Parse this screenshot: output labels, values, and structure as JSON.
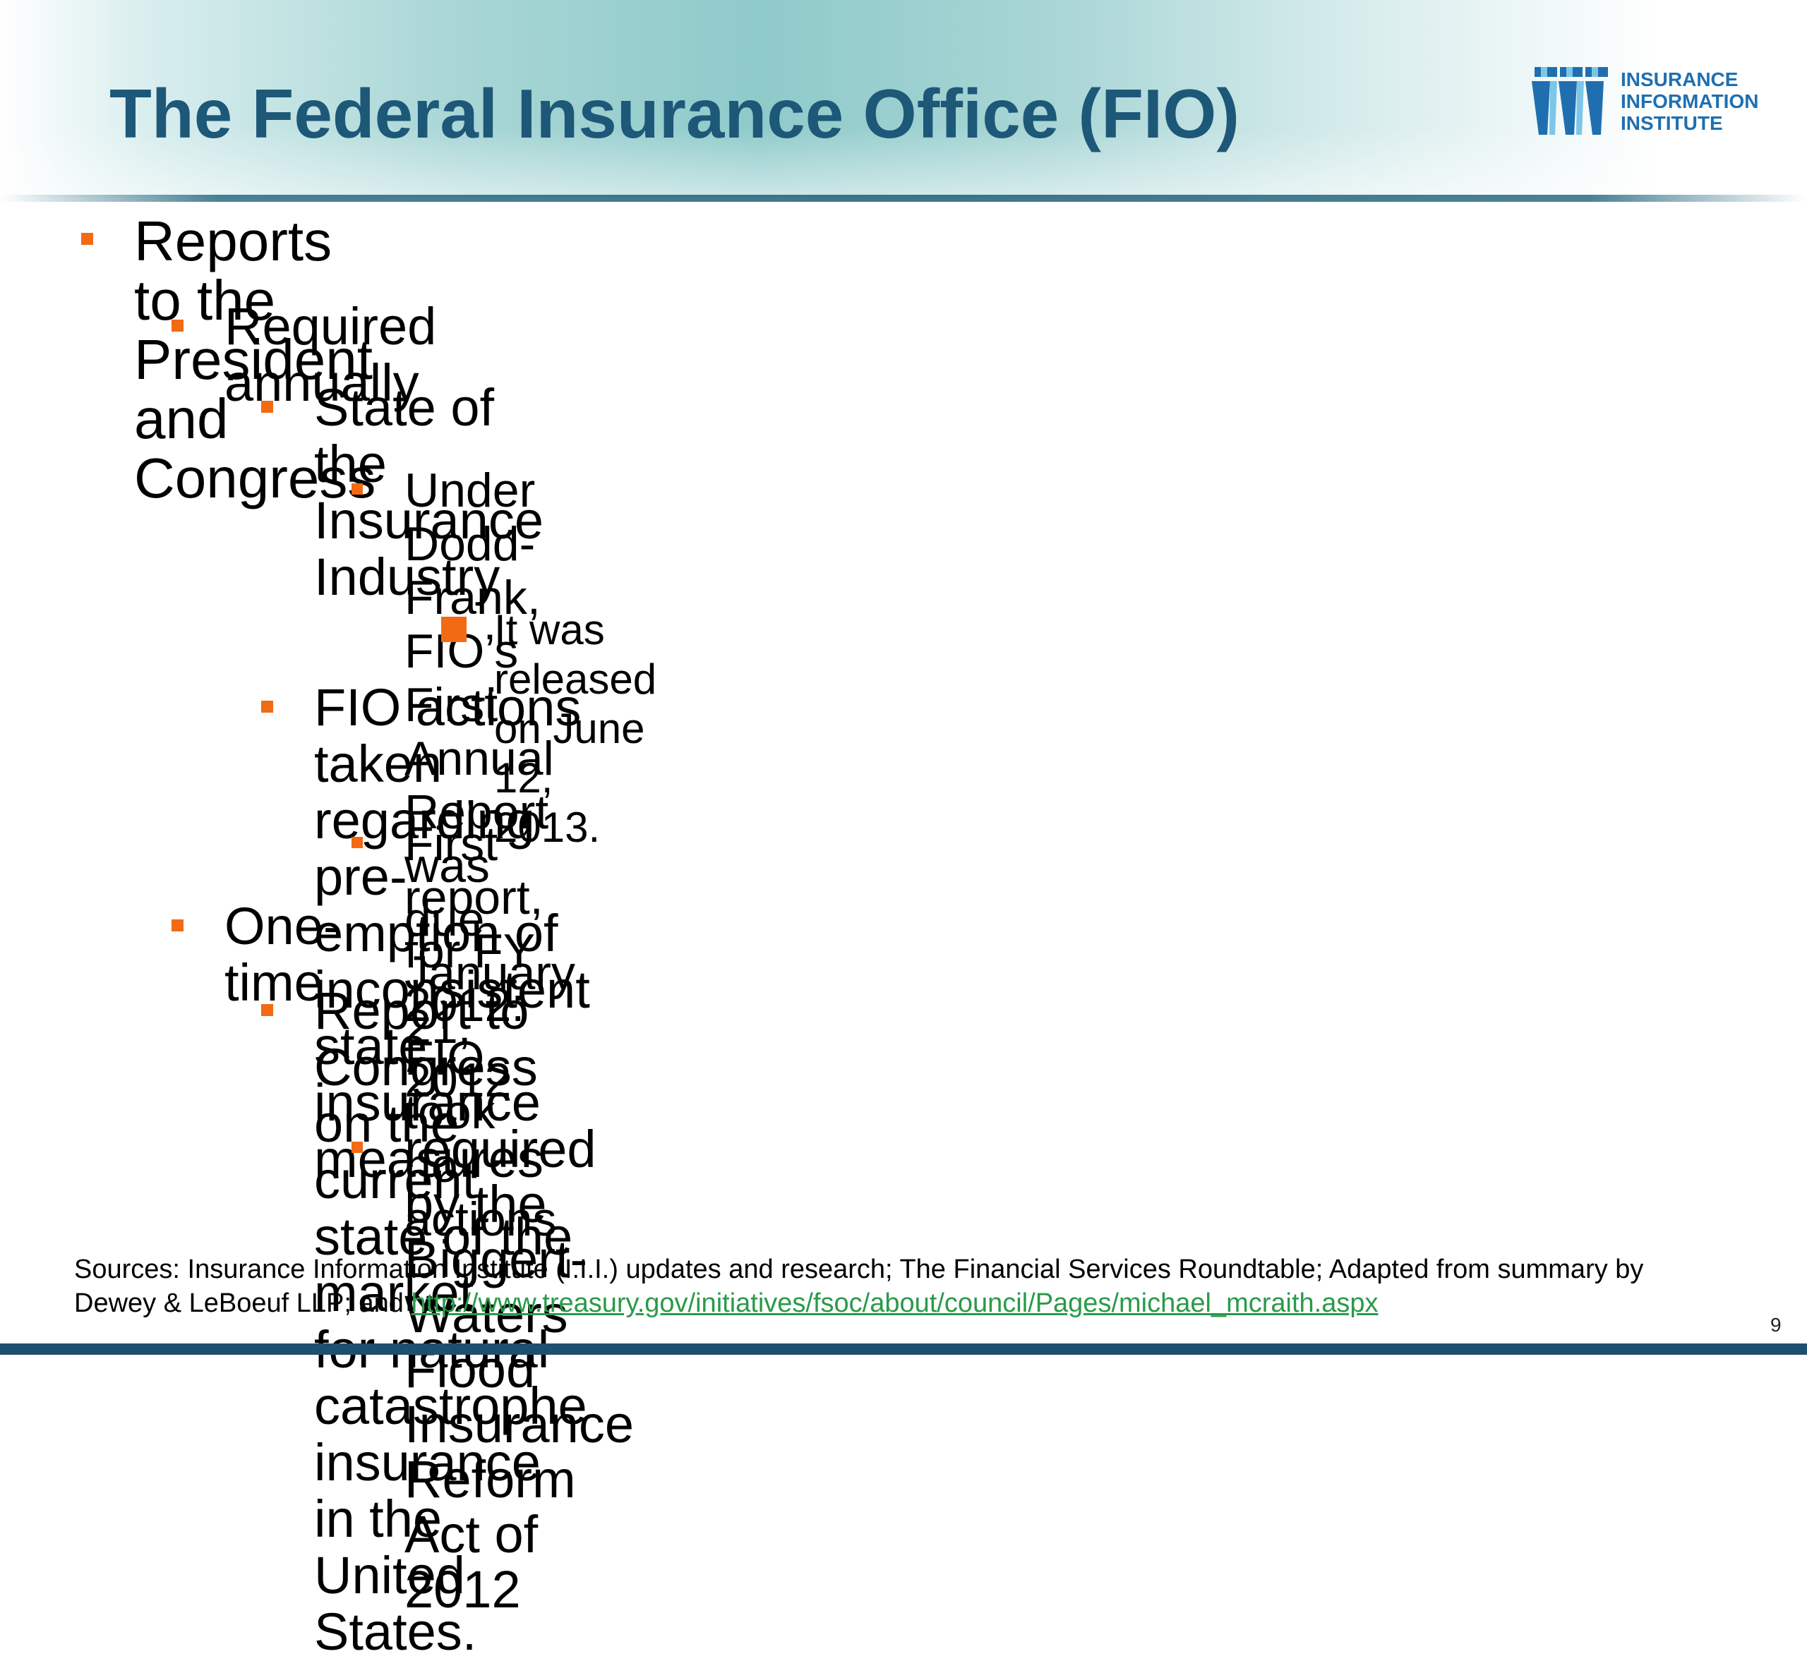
{
  "slide": {
    "title": "The Federal Insurance Office (FIO)",
    "logo": {
      "icon": "iii-logo-icon",
      "lines": [
        "INSURANCE",
        "INFORMATION",
        "INSTITUTE"
      ],
      "color": "#1f6fb0"
    },
    "accent_color": "#f26a13",
    "title_color": "#1d5878",
    "bullets": [
      {
        "level": 1,
        "text": "Reports to the President and Congress"
      },
      {
        "level": 2,
        "text": "Required annually"
      },
      {
        "level": 3,
        "text": "State of the Insurance Industry"
      },
      {
        "level": 4,
        "text": "Under Dodd-Frank, FIO’s First Annual Report was due\nJanuary 21, 2012"
      },
      {
        "level": 5,
        "text": "It was released on June 12, 2013."
      },
      {
        "level": 3,
        "text": "FIO actions taken regarding pre-emption of inconsistent\nstate insurance measures"
      },
      {
        "level": 4,
        "text": "First report, for FY 2012: FIO took no actions"
      },
      {
        "level": 2,
        "text": "One-time"
      },
      {
        "level": 3,
        "text": "Report to Congress on the current state of the market\nfor natural catastrophe insurance in the United States."
      },
      {
        "level": 4,
        "text": "required by the Biggert-Waters Flood Insurance\nReform Act of 2012"
      }
    ],
    "sources": {
      "prefix": "Sources: Insurance Information Institute (I.I.I.) updates and research; The Financial Services Roundtable; Adapted from summary by Dewey & LeBoeuf LLP; and ",
      "link_text": "http://www.treasury.gov/initiatives/fsoc/about/council/Pages/michael_mcraith.aspx"
    },
    "page_number": "9"
  }
}
